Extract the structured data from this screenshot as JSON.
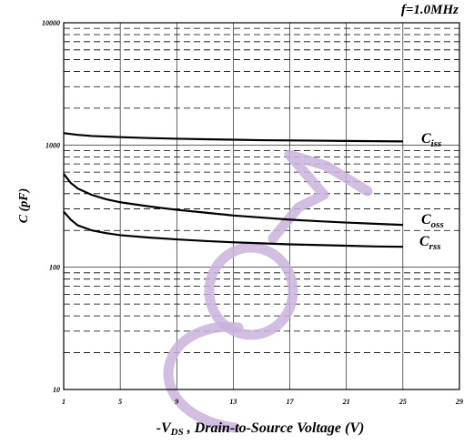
{
  "chart_data": {
    "type": "line",
    "title": "f=1.0MHz",
    "xlabel": "-V_DS , Drain-to-Source Voltage (V)",
    "xlabel_main": "-V",
    "xlabel_sub": "DS",
    "xlabel_rest": " , Drain-to-Source Voltage (V)",
    "ylabel": "C (pF)",
    "xlim": [
      1,
      29
    ],
    "ylim": [
      10,
      10000
    ],
    "yscale": "log",
    "grid": true,
    "x_ticks": [
      "1",
      "5",
      "9",
      "13",
      "17",
      "21",
      "25",
      "29"
    ],
    "y_ticks": [
      "10",
      "100",
      "1000",
      "10000"
    ],
    "series": [
      {
        "name": "C_iss",
        "label_main": "C",
        "label_sub": "iss",
        "x": [
          1,
          2,
          3,
          5,
          7,
          9,
          11,
          13,
          15,
          17,
          19,
          21,
          23,
          25
        ],
        "values": [
          1250,
          1210,
          1185,
          1160,
          1140,
          1125,
          1115,
          1105,
          1095,
          1090,
          1085,
          1080,
          1075,
          1070
        ]
      },
      {
        "name": "C_oss",
        "label_main": "C",
        "label_sub": "oss",
        "x": [
          1,
          1.5,
          2,
          3,
          4,
          5,
          7,
          9,
          11,
          13,
          15,
          17,
          19,
          21,
          23,
          25
        ],
        "values": [
          580,
          490,
          440,
          390,
          360,
          340,
          315,
          295,
          280,
          265,
          255,
          245,
          238,
          232,
          227,
          222
        ]
      },
      {
        "name": "C_rss",
        "label_main": "C",
        "label_sub": "rss",
        "x": [
          1,
          1.5,
          2,
          3,
          4,
          5,
          7,
          9,
          11,
          13,
          15,
          17,
          19,
          21,
          23,
          25
        ],
        "values": [
          285,
          245,
          220,
          200,
          190,
          183,
          175,
          169,
          164,
          160,
          157,
          154,
          152,
          150,
          148,
          147
        ]
      }
    ]
  },
  "watermark": {
    "text": "CONF",
    "color": "#c9b3dc"
  }
}
